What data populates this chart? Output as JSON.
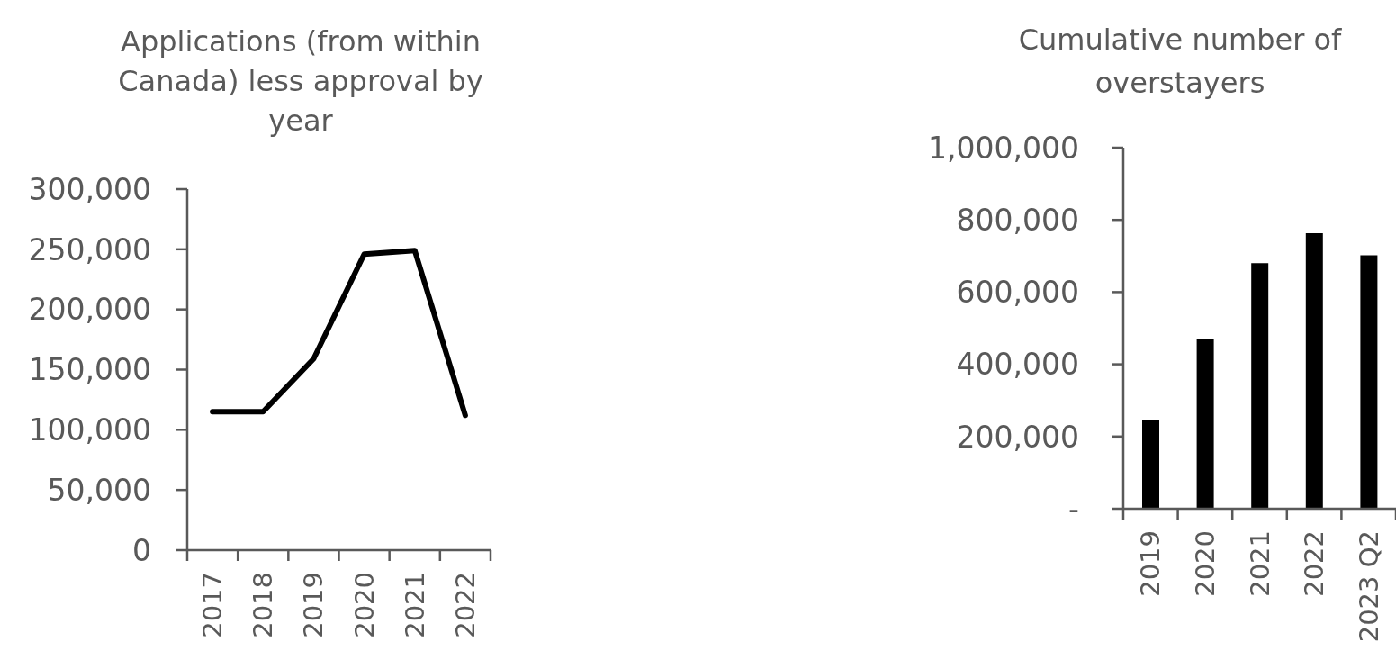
{
  "chart_data": [
    {
      "type": "line",
      "title": "Applications (from within Canada) less approval by year",
      "categories": [
        "2017",
        "2018",
        "2019",
        "2020",
        "2021",
        "2022"
      ],
      "values": [
        115000,
        115000,
        159000,
        246000,
        249000,
        112000
      ],
      "color": "#000000",
      "marker": "none",
      "ylim": [
        0,
        300000
      ],
      "yticks": [
        0,
        {
          "value": 50000,
          "label": "50,000"
        },
        {
          "value": 100000,
          "label": "100,000"
        },
        {
          "value": 150000,
          "label": "150,000"
        },
        {
          "value": 200000,
          "label": "200,000"
        },
        {
          "value": 250000,
          "label": "250,000"
        },
        {
          "value": 300000,
          "label": "300,000"
        }
      ]
    },
    {
      "type": "bar",
      "title": "Cumulative number of overstayers",
      "categories": [
        "2019",
        "2020",
        "2021",
        "2022",
        "2023 Q2"
      ],
      "values": [
        245000,
        469000,
        680000,
        763000,
        702000
      ],
      "color": "#000000",
      "ylim": [
        0,
        1000000
      ],
      "yticks": [
        {
          "value": 0,
          "label": "-"
        },
        {
          "value": 200000,
          "label": "200,000"
        },
        {
          "value": 400000,
          "label": "400,000"
        },
        {
          "value": 600000,
          "label": "600,000"
        },
        {
          "value": 800000,
          "label": "800,000"
        },
        {
          "value": 1000000,
          "label": "1,000,000"
        }
      ]
    }
  ]
}
